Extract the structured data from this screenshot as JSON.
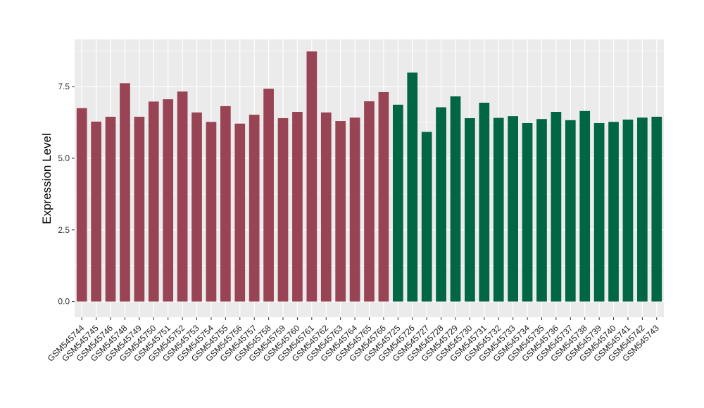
{
  "chart_data": {
    "type": "bar",
    "title": "",
    "xlabel": "",
    "ylabel": "Expression Level",
    "ylim": [
      -0.55,
      9.15
    ],
    "yticks": [
      0.0,
      2.5,
      5.0,
      7.5
    ],
    "ytick_labels": [
      "0.0",
      "2.5",
      "5.0",
      "7.5"
    ],
    "grid": true,
    "legend": "none",
    "colors": {
      "group_a": "#994455",
      "group_b": "#006644",
      "panel_bg": "#ebebeb",
      "grid": "#ffffff"
    },
    "categories": [
      "GSM545744",
      "GSM545745",
      "GSM545746",
      "GSM545748",
      "GSM545749",
      "GSM545750",
      "GSM545751",
      "GSM545752",
      "GSM545753",
      "GSM545754",
      "GSM545755",
      "GSM545756",
      "GSM545757",
      "GSM545758",
      "GSM545759",
      "GSM545760",
      "GSM545761",
      "GSM545762",
      "GSM545763",
      "GSM545764",
      "GSM545765",
      "GSM545766",
      "GSM545725",
      "GSM545726",
      "GSM545727",
      "GSM545728",
      "GSM545729",
      "GSM545730",
      "GSM545731",
      "GSM545732",
      "GSM545733",
      "GSM545734",
      "GSM545735",
      "GSM545736",
      "GSM545737",
      "GSM545738",
      "GSM545739",
      "GSM545740",
      "GSM545741",
      "GSM545742",
      "GSM545743"
    ],
    "values": [
      6.75,
      6.28,
      6.45,
      7.62,
      6.45,
      6.98,
      7.06,
      7.33,
      6.6,
      6.27,
      6.82,
      6.21,
      6.52,
      7.43,
      6.4,
      6.62,
      8.73,
      6.6,
      6.3,
      6.42,
      6.99,
      7.31,
      6.87,
      7.99,
      5.92,
      6.78,
      7.16,
      6.4,
      6.94,
      6.41,
      6.47,
      6.23,
      6.37,
      6.62,
      6.33,
      6.65,
      6.23,
      6.27,
      6.35,
      6.42,
      6.45
    ],
    "groups": [
      "a",
      "a",
      "a",
      "a",
      "a",
      "a",
      "a",
      "a",
      "a",
      "a",
      "a",
      "a",
      "a",
      "a",
      "a",
      "a",
      "a",
      "a",
      "a",
      "a",
      "a",
      "a",
      "b",
      "b",
      "b",
      "b",
      "b",
      "b",
      "b",
      "b",
      "b",
      "b",
      "b",
      "b",
      "b",
      "b",
      "b",
      "b",
      "b",
      "b",
      "b"
    ]
  }
}
